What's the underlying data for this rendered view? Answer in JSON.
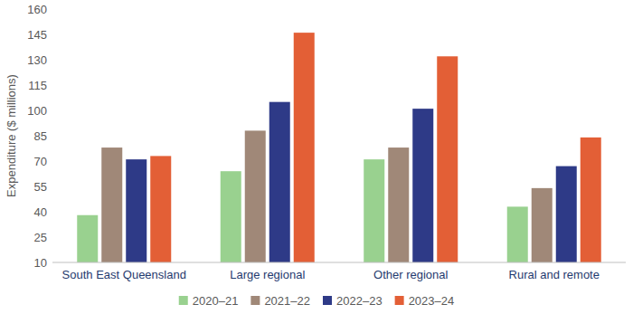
{
  "chart_data": {
    "type": "bar",
    "y_label": "Expenditure ($ millions)",
    "categories": [
      "South East Queensland",
      "Large regional",
      "Other regional",
      "Rural and remote"
    ],
    "series": [
      {
        "name": "2020–21",
        "color": "#99d18f",
        "values": [
          38,
          64,
          71,
          43
        ]
      },
      {
        "name": "2021–22",
        "color": "#a08878",
        "values": [
          78,
          88,
          78,
          54
        ]
      },
      {
        "name": "2022–23",
        "color": "#2e3a87",
        "values": [
          71,
          105,
          101,
          67
        ]
      },
      {
        "name": "2023–24",
        "color": "#e35f36",
        "values": [
          73,
          146,
          132,
          84
        ]
      }
    ],
    "ylim": [
      10,
      160
    ],
    "yticks": [
      10,
      25,
      40,
      55,
      70,
      85,
      100,
      115,
      130,
      145,
      160
    ],
    "grid": false,
    "legend": "bottom"
  }
}
